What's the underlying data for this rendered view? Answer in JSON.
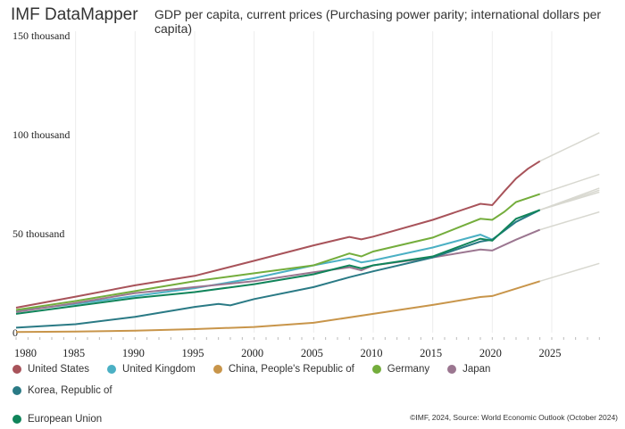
{
  "header": {
    "brand": "IMF DataMapper",
    "title": "GDP per capita, current prices (Purchasing power parity; international dollars per capita)"
  },
  "footer": "©IMF, 2024, Source: World Economic Outlook (October 2024)",
  "chart_data": {
    "type": "line",
    "title": "GDP per capita, current prices (Purchasing power parity; international dollars per capita)",
    "xlim": [
      1980,
      2029
    ],
    "ylim": [
      0,
      150000
    ],
    "x_ticks": [
      "1980",
      "1985",
      "1990",
      "1995",
      "2000",
      "2005",
      "2010",
      "2015",
      "2020",
      "2025"
    ],
    "y_ticks": [
      {
        "value": 0,
        "label": "0"
      },
      {
        "value": 50000,
        "label": "50 thousand"
      },
      {
        "value": 100000,
        "label": "100 thousand"
      },
      {
        "value": 150000,
        "label": "150 thousand"
      }
    ],
    "grid": "vertical",
    "legend": "bottom",
    "projection_start": 2024,
    "projection_color": "#d8d8d0",
    "series": [
      {
        "name": "United States",
        "color": "#a8535a",
        "x": [
          1980,
          1985,
          1990,
          1995,
          2000,
          2005,
          2008,
          2009,
          2010,
          2015,
          2019,
          2020,
          2021,
          2022,
          2023,
          2024,
          2029
        ],
        "values": [
          12600,
          18200,
          23900,
          28700,
          36300,
          44100,
          48400,
          47100,
          48500,
          57000,
          65100,
          64400,
          71300,
          77900,
          82800,
          86600,
          101000
        ]
      },
      {
        "name": "United Kingdom",
        "color": "#4bb0c4",
        "x": [
          1980,
          1985,
          1990,
          1995,
          2000,
          2005,
          2008,
          2009,
          2010,
          2015,
          2019,
          2020,
          2022,
          2024,
          2029
        ],
        "values": [
          11000,
          14500,
          18500,
          22500,
          27500,
          34000,
          37500,
          35500,
          36500,
          43000,
          49500,
          47000,
          56000,
          62000,
          73000
        ]
      },
      {
        "name": "China, People's Republic of",
        "color": "#c8954a",
        "x": [
          1980,
          1985,
          1990,
          1995,
          2000,
          2005,
          2010,
          2015,
          2019,
          2020,
          2024,
          2029
        ],
        "values": [
          300,
          600,
          1000,
          1800,
          2900,
          5000,
          9500,
          14000,
          18000,
          18500,
          26000,
          35000
        ]
      },
      {
        "name": "Germany",
        "color": "#74ad3c",
        "x": [
          1980,
          1985,
          1990,
          1995,
          2000,
          2005,
          2008,
          2009,
          2010,
          2015,
          2019,
          2020,
          2021,
          2022,
          2024,
          2029
        ],
        "values": [
          11500,
          16000,
          21000,
          26000,
          30000,
          34000,
          40000,
          38500,
          41000,
          48000,
          57500,
          57000,
          61000,
          66000,
          70000,
          80000
        ]
      },
      {
        "name": "Japan",
        "color": "#9b7690",
        "x": [
          1980,
          1985,
          1990,
          1995,
          2000,
          2005,
          2008,
          2009,
          2010,
          2015,
          2019,
          2020,
          2022,
          2024,
          2029
        ],
        "values": [
          10500,
          15000,
          20000,
          23000,
          26000,
          30500,
          33000,
          31500,
          34000,
          38000,
          42000,
          41500,
          47000,
          52000,
          61000
        ]
      },
      {
        "name": "Korea, Republic of",
        "color": "#2a7a85",
        "x": [
          1980,
          1985,
          1990,
          1995,
          1997,
          1998,
          2000,
          2005,
          2008,
          2010,
          2015,
          2019,
          2020,
          2022,
          2024,
          2029
        ],
        "values": [
          2500,
          4300,
          8000,
          13000,
          14500,
          13800,
          17000,
          23000,
          28000,
          31000,
          38000,
          46000,
          47000,
          56000,
          62000,
          72000
        ]
      },
      {
        "name": "European Union",
        "color": "#10845a",
        "x": [
          1980,
          1985,
          1990,
          1995,
          2000,
          2005,
          2008,
          2009,
          2010,
          2015,
          2019,
          2020,
          2022,
          2024,
          2029
        ],
        "values": [
          9500,
          13500,
          17500,
          20500,
          24500,
          29500,
          34000,
          32500,
          34000,
          38500,
          47500,
          46500,
          57500,
          62000,
          71000
        ]
      }
    ]
  }
}
